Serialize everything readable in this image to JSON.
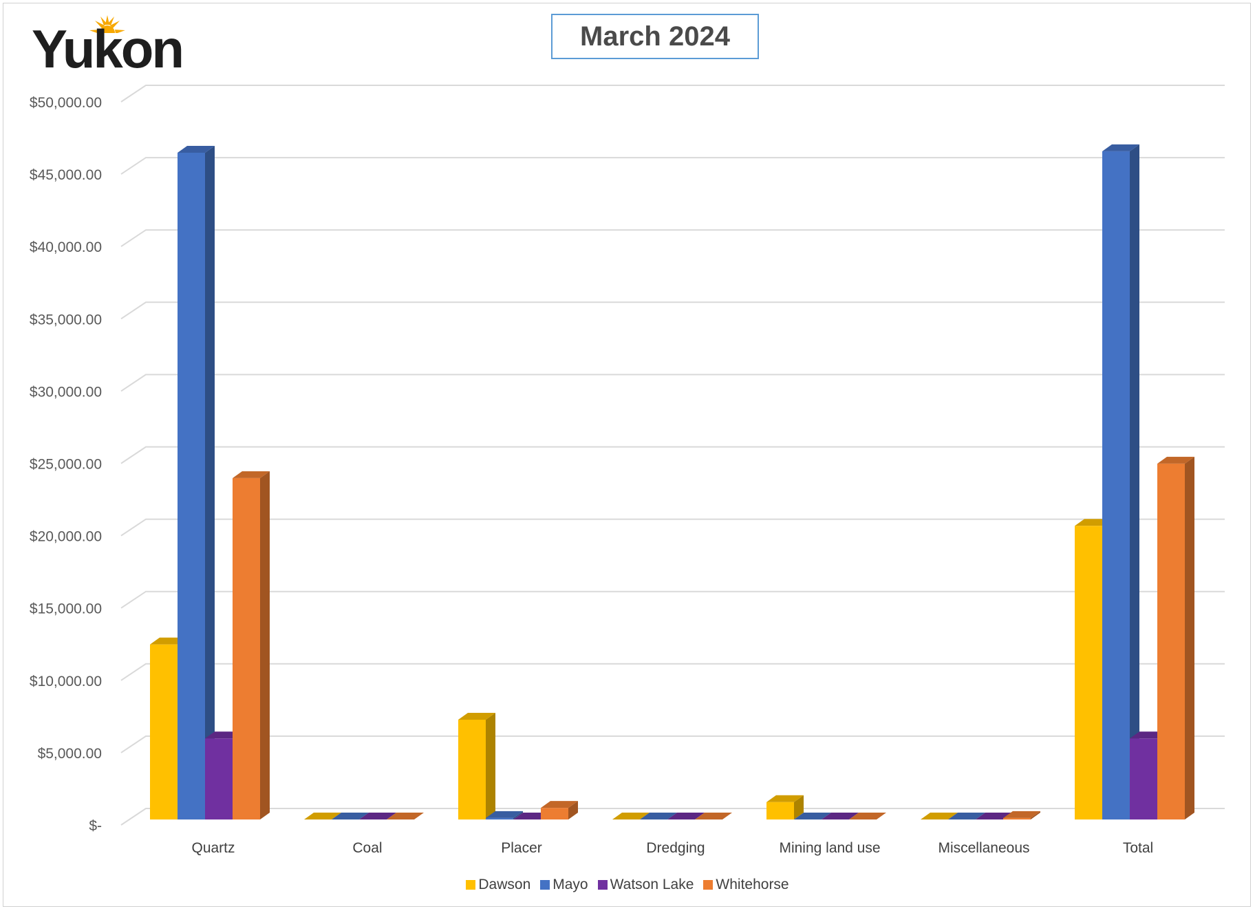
{
  "logo": {
    "text": "Yukon"
  },
  "chart_data": {
    "type": "bar",
    "title": "March 2024",
    "xlabel": "",
    "ylabel": "",
    "categories": [
      "Quartz",
      "Coal",
      "Placer",
      "Dredging",
      "Mining land use",
      "Miscellaneous",
      "Total"
    ],
    "ylim": [
      0,
      50000
    ],
    "yticks": [
      0,
      5000,
      10000,
      15000,
      20000,
      25000,
      30000,
      35000,
      40000,
      45000,
      50000
    ],
    "ytick_labels": [
      "$-",
      "$5,000.00",
      "$10,000.00",
      "$15,000.00",
      "$20,000.00",
      "$25,000.00",
      "$30,000.00",
      "$35,000.00",
      "$40,000.00",
      "$45,000.00",
      "$50,000.00"
    ],
    "grid": true,
    "legend_position": "bottom",
    "style": "3d-clustered-column",
    "series": [
      {
        "name": "Dawson",
        "color": "#ffc000",
        "values": [
          12100,
          0,
          6900,
          0,
          1200,
          0,
          20300
        ]
      },
      {
        "name": "Mayo",
        "color": "#4472c4",
        "values": [
          46100,
          0,
          100,
          0,
          0,
          0,
          46200
        ]
      },
      {
        "name": "Watson Lake",
        "color": "#7030a0",
        "values": [
          5600,
          0,
          0,
          0,
          0,
          0,
          5600
        ]
      },
      {
        "name": "Whitehorse",
        "color": "#ed7d31",
        "values": [
          23600,
          0,
          800,
          0,
          0,
          100,
          24600
        ]
      }
    ]
  }
}
